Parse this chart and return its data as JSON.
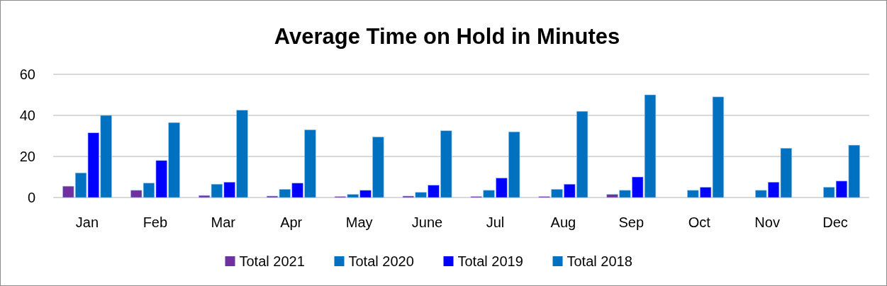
{
  "chart_data": {
    "type": "bar",
    "title": "Average Time on Hold in Minutes",
    "categories": [
      "Jan",
      "Feb",
      "Mar",
      "Apr",
      "May",
      "June",
      "Jul",
      "Aug",
      "Sep",
      "Oct",
      "Nov",
      "Dec"
    ],
    "series": [
      {
        "name": "Total 2021",
        "color": "#7030a0",
        "values": [
          5.5,
          3.5,
          1,
          0.7,
          0.5,
          0.7,
          0.5,
          0.5,
          1.5,
          null,
          null,
          null
        ]
      },
      {
        "name": "Total 2020",
        "color": "#0070c0",
        "values": [
          12,
          7,
          6.5,
          4,
          1.5,
          2.5,
          3.5,
          4,
          3.5,
          3.5,
          3.5,
          5
        ]
      },
      {
        "name": "Total 2019",
        "color": "#0000ff",
        "values": [
          31.5,
          18,
          7.5,
          7,
          3.5,
          6,
          9.5,
          6.5,
          10,
          5,
          7.5,
          8
        ]
      },
      {
        "name": "Total 2018",
        "color": "#0070c0",
        "values": [
          40,
          36.5,
          42.5,
          33,
          29.5,
          32.5,
          32,
          42,
          50,
          49,
          24,
          25.5
        ]
      }
    ],
    "ylim": [
      0,
      60
    ],
    "yticks": [
      0,
      20,
      40,
      60
    ],
    "grid": "y",
    "legend": "bottom"
  }
}
